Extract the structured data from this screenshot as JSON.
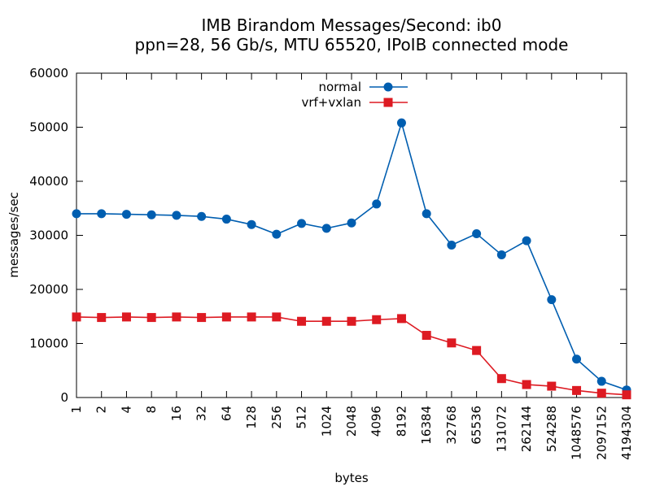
{
  "chart_data": {
    "type": "line",
    "title_line1": "IMB Birandom Messages/Second: ib0",
    "title_line2": "ppn=28, 56 Gb/s, MTU 65520, IPoIB connected mode",
    "xlabel": "bytes",
    "ylabel": "messages/sec",
    "categories": [
      "1",
      "2",
      "4",
      "8",
      "16",
      "32",
      "64",
      "128",
      "256",
      "512",
      "1024",
      "2048",
      "4096",
      "8192",
      "16384",
      "32768",
      "65536",
      "131072",
      "262144",
      "524288",
      "1048576",
      "2097152",
      "4194304"
    ],
    "ylim": [
      0,
      60000
    ],
    "yticks": [
      0,
      10000,
      20000,
      30000,
      40000,
      50000,
      60000
    ],
    "legend_position": "top-center",
    "grid": false,
    "series": [
      {
        "name": "normal",
        "color": "#005eb0",
        "marker": "circle",
        "values": [
          34000,
          34000,
          33900,
          33800,
          33700,
          33500,
          33000,
          32000,
          30200,
          32200,
          31300,
          32300,
          35800,
          50800,
          34000,
          28200,
          30300,
          26400,
          29000,
          18100,
          7100,
          3000,
          1400
        ]
      },
      {
        "name": "vrf+vxlan",
        "color": "#dd1a22",
        "marker": "square",
        "values": [
          14900,
          14800,
          14900,
          14800,
          14900,
          14800,
          14900,
          14900,
          14900,
          14100,
          14100,
          14100,
          14400,
          14600,
          11500,
          10100,
          8700,
          3500,
          2400,
          2100,
          1300,
          800,
          500
        ]
      }
    ]
  }
}
